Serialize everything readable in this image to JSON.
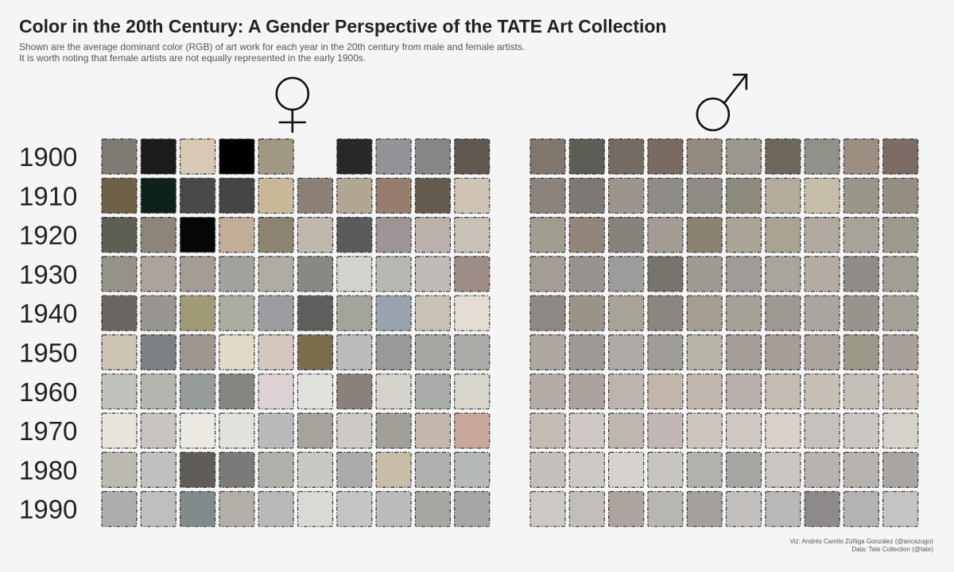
{
  "title": "Color in the 20th Century: A Gender Perspective of the TATE Art Collection",
  "subtitle_lines": [
    "Shown are the average dominant color (RGB) of art work for each year in the 20th century from male and female artists.",
    "It is worth noting that female artists are not equally represented in the early 1900s."
  ],
  "caption_lines": [
    "Viz: Andrés Camilo Zúñiga González (@ancazugo)",
    "Data: Tate Collection (@tate)"
  ],
  "colors": {
    "background": "#f5f5f5",
    "text": "#222222",
    "tile_border": "#333333"
  },
  "chart_data": {
    "type": "heatmap",
    "title": "Color in the 20th Century: A Gender Perspective of the TATE Art Collection",
    "decades": [
      "1900",
      "1910",
      "1920",
      "1930",
      "1940",
      "1950",
      "1960",
      "1970",
      "1980",
      "1990"
    ],
    "year_in_decade": [
      0,
      1,
      2,
      3,
      4,
      5,
      6,
      7,
      8,
      9
    ],
    "panels": [
      {
        "gender": "female",
        "symbol": "♀",
        "icon": "female-symbol-icon",
        "colors": [
          [
            "#7f7b74",
            "#1c1c1b",
            "#d9c9b4",
            "#000000",
            "#a09883",
            null,
            "#2a2829",
            "#93949a",
            "#878686",
            "#60574e"
          ],
          [
            "#6f6148",
            "#0f211b",
            "#4a494a",
            "#454547",
            "#c9b898",
            "#8d8177",
            "#b0a692",
            "#977d6d",
            "#625b4e",
            "#cfc3b3"
          ],
          [
            "#5f5e54",
            "#8d8579",
            "#050707",
            "#c2ad98",
            "#8c8471",
            "#c0b8ac",
            "#5b5b5b",
            "#9d9595",
            "#bcb0ac",
            "#c8c2b8"
          ],
          [
            "#959388",
            "#aba49b",
            "#a49d95",
            "#a2a19d",
            "#b0aca4",
            "#898884",
            "#d4d4cf",
            "#b8b7b1",
            "#bfbbb8",
            "#9e8c86"
          ],
          [
            "#6b6561",
            "#999590",
            "#a09a77",
            "#adaca0",
            "#9e9ca0",
            "#5e5e5d",
            "#a4a49c",
            "#99a3ad",
            "#c7c1b6",
            "#e4ddd4"
          ],
          [
            "#cdc4b4",
            "#7d8184",
            "#9f9690",
            "#e2d9c8",
            "#d5c7be",
            "#7b6d4c",
            "#bdbcbb",
            "#999997",
            "#a7a6a3",
            "#a9aba6"
          ],
          [
            "#bfc3bc",
            "#b4b5ae",
            "#959c9a",
            "#868680",
            "#ded1d3",
            "#e2e2dd",
            "#8b807c",
            "#d5d3cc",
            "#a9aba9",
            "#d8d6cf"
          ],
          [
            "#e8e4dc",
            "#c8c5c1",
            "#ebe9e1",
            "#e3e3de",
            "#b9bbbb",
            "#a6a29c",
            "#cdc9c4",
            "#a19f97",
            "#c3b7ad",
            "#c9a89b"
          ],
          [
            "#bcb9b1",
            "#c0c1bf",
            "#605d58",
            "#7b7a79",
            "#b2b0ab",
            "#cac8c2",
            "#aaaaa9",
            "#c7bda9",
            "#b0afae",
            "#b4b8b7"
          ],
          [
            "#adadab",
            "#c0bfbd",
            "#818b8c",
            "#b4aea8",
            "#b9b8b7",
            "#dbd9d4",
            "#c4c4c2",
            "#bcbcbb",
            "#a8a8a3",
            "#a6a6a4"
          ]
        ]
      },
      {
        "gender": "male",
        "symbol": "♂",
        "icon": "male-symbol-icon",
        "colors": [
          [
            "#80766c",
            "#5e5d55",
            "#766b62",
            "#796a62",
            "#928a7f",
            "#9a978c",
            "#6e675c",
            "#91918a",
            "#9c8e81",
            "#7c6c65"
          ],
          [
            "#8a827b",
            "#7d7873",
            "#9b958d",
            "#8f8b86",
            "#908a84",
            "#8c8a7d",
            "#b4ab9d",
            "#c6bea8",
            "#9a9589",
            "#948d82"
          ],
          [
            "#a09c90",
            "#918679",
            "#86827c",
            "#a49c94",
            "#8c8270",
            "#aaa496",
            "#a9a393",
            "#b2aaa0",
            "#a7a39b",
            "#9c9a8d"
          ],
          [
            "#a39d96",
            "#989390",
            "#9c9c9b",
            "#78736d",
            "#a09a94",
            "#9f9c98",
            "#a9a49d",
            "#b5ada3",
            "#908d89",
            "#a29e95"
          ],
          [
            "#8d8883",
            "#9a9387",
            "#a7a497",
            "#8a867f",
            "#a39d92",
            "#a6a197",
            "#9d9891",
            "#aba59f",
            "#97948d",
            "#a6a198"
          ],
          [
            "#aea8a0",
            "#9e9994",
            "#aeaaa5",
            "#9f9b96",
            "#b8b3a7",
            "#a59d97",
            "#a59d96",
            "#aaa49d",
            "#9c9888",
            "#a8a09a"
          ],
          [
            "#b6aca6",
            "#aba29e",
            "#bdb4af",
            "#c2b5aa",
            "#c0b6ad",
            "#b9b0ab",
            "#c5bcb3",
            "#c8bfb6",
            "#c5bfba",
            "#c4bdb6"
          ],
          [
            "#c5bcb3",
            "#cec7c3",
            "#bdb7b0",
            "#c3b7b5",
            "#cfc5bf",
            "#cfc7c1",
            "#d8d2cb",
            "#c6c1bc",
            "#cac6c3",
            "#d6d1ca"
          ],
          [
            "#c4bfba",
            "#ccc9c4",
            "#d6d3ce",
            "#c8c5c1",
            "#b3b1ad",
            "#a7a6a2",
            "#cac5c1",
            "#b8b3ae",
            "#b7b2ae",
            "#a9a6a2"
          ],
          [
            "#ccc9c4",
            "#c1bebb",
            "#aea49f",
            "#b8b6b1",
            "#a3a09d",
            "#c2bfbc",
            "#bab8b6",
            "#8e8a8a",
            "#b4b3b2",
            "#c5c4c2"
          ]
        ]
      }
    ],
    "legend": "none",
    "grid": false
  }
}
